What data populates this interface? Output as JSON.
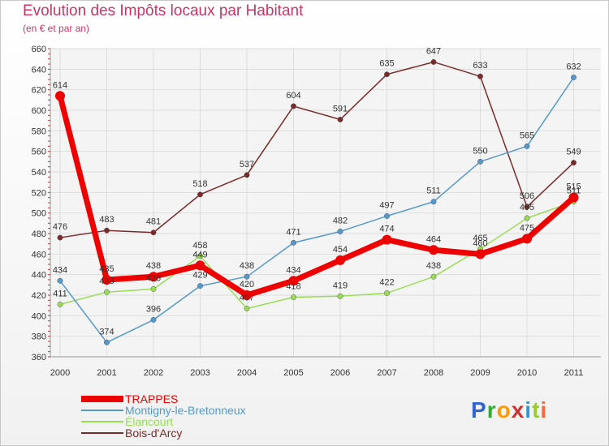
{
  "chart_data": {
    "type": "line",
    "title": "Evolution des Impôts locaux par Habitant",
    "subtitle": "(en € et par an)",
    "categories": [
      "2000",
      "2001",
      "2002",
      "2003",
      "2004",
      "2005",
      "2006",
      "2007",
      "2008",
      "2009",
      "2010",
      "2011"
    ],
    "ylim": [
      360,
      660
    ],
    "yticks": [
      360,
      380,
      400,
      420,
      440,
      460,
      480,
      500,
      520,
      540,
      560,
      580,
      600,
      620,
      640,
      660
    ],
    "series": [
      {
        "name": "Bois-d'Arcy",
        "color": "#7a2a2a",
        "values": [
          476,
          483,
          481,
          518,
          537,
          604,
          591,
          635,
          647,
          633,
          506,
          549
        ]
      },
      {
        "name": "Élancourt",
        "color": "#99dd55",
        "values": [
          411,
          423,
          426,
          458,
          407,
          418,
          419,
          422,
          438,
          465,
          495,
          511
        ]
      },
      {
        "name": "Montigny-le-Bretonneux",
        "color": "#5599cc",
        "values": [
          434,
          374,
          396,
          429,
          438,
          471,
          482,
          497,
          511,
          550,
          565,
          632
        ]
      },
      {
        "name": "TRAPPES",
        "color": "#ee0000",
        "values": [
          614,
          435,
          438,
          449,
          420,
          434,
          454,
          474,
          464,
          460,
          475,
          515
        ]
      }
    ],
    "legend_order": [
      "TRAPPES",
      "Montigny-le-Bretonneux",
      "Élancourt",
      "Bois-d'Arcy"
    ]
  },
  "logo": {
    "text": "Proxiti",
    "colors": [
      "#3366cc",
      "#33aa33",
      "#ff9900",
      "#cc3333",
      "#3399cc",
      "#99cc33",
      "#ff6633"
    ]
  }
}
